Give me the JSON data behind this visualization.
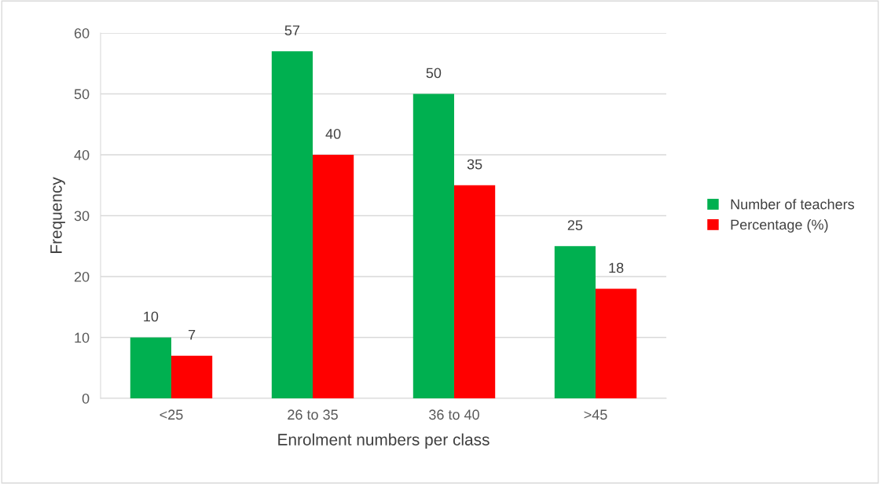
{
  "chart_data": {
    "type": "bar",
    "xlabel": "Enrolment numbers per class",
    "ylabel": "Frequency",
    "categories": [
      "<25",
      "26 to 35",
      "36 to 40",
      ">45"
    ],
    "series": [
      {
        "name": "Number of teachers",
        "color": "#00b050",
        "values": [
          10,
          57,
          50,
          25
        ]
      },
      {
        "name": "Percentage (%)",
        "color": "#ff0000",
        "values": [
          7,
          40,
          35,
          18
        ]
      }
    ],
    "ylim": [
      0,
      60
    ],
    "yticks": [
      0,
      10,
      20,
      30,
      40,
      50,
      60
    ],
    "grid": "y",
    "legend": "right",
    "data_labels": true
  }
}
